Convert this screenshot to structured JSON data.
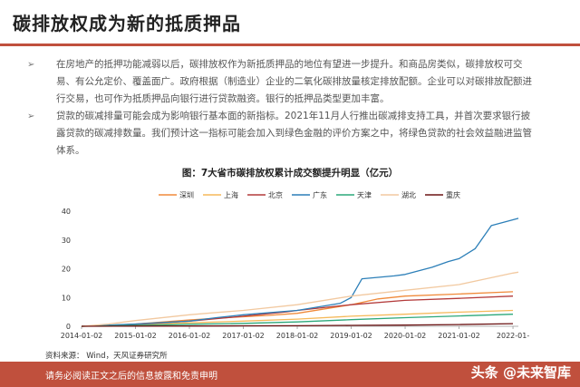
{
  "page": {
    "title": "碳排放权成为新的抵质押品",
    "bullet_symbol": "➢",
    "bullets": [
      "在房地产的抵押功能减弱以后，碳排放权作为新抵质押品的地位有望进一步提升。和商品房类似，碳排放权可交易、有公允定价、覆盖面广。政府根据（制造业）企业的二氧化碳排放量核定排放配额。企业可以对碳排放配额进行交易，也可作为抵质押品向银行进行贷款融资。银行的抵押品类型更加丰富。",
      "贷款的碳减排量可能会成为影响银行基本面的新指标。2021年11月人行推出碳减排支持工具，并首次要求银行披露贷款的碳减排数量。我们预计这一指标可能会加入到绿色金融的评价方案之中，将绿色贷款的社会效益融进监管体系。"
    ],
    "source": "资料来源： Wind，天风证券研究所",
    "footer": "请务必阅读正文之后的信息披露和免责申明",
    "watermark": "头条 @未来智库"
  },
  "chart_data": {
    "type": "line",
    "title": "图：7大省市碳排放权累计成交额提升明显（亿元）",
    "x_ticks": [
      "2014-01-02",
      "2015-01-02",
      "2016-01-02",
      "2017-01-02",
      "2018-01-02",
      "2019-01-02",
      "2020-01-02",
      "2021-01-02",
      "2022-01-"
    ],
    "xlim": [
      2014.0,
      2022.1
    ],
    "ylim": [
      0,
      40
    ],
    "y_ticks": [
      0,
      10,
      20,
      30,
      40
    ],
    "grid": false,
    "legend_position": "top",
    "series": [
      {
        "name": "深圳",
        "color": "#f08a3a",
        "points": [
          [
            2014.0,
            0
          ],
          [
            2014.5,
            0.3
          ],
          [
            2015.0,
            0.8
          ],
          [
            2016.0,
            2.2
          ],
          [
            2016.5,
            2.8
          ],
          [
            2017.0,
            3.3
          ],
          [
            2017.5,
            3.8
          ],
          [
            2018.0,
            4.5
          ],
          [
            2019.0,
            7.5
          ],
          [
            2019.5,
            9.5
          ],
          [
            2020.0,
            10.5
          ],
          [
            2021.0,
            11.2
          ],
          [
            2022.0,
            12.0
          ]
        ]
      },
      {
        "name": "上海",
        "color": "#f5b95a",
        "points": [
          [
            2014.0,
            0
          ],
          [
            2014.5,
            0.2
          ],
          [
            2015.0,
            0.6
          ],
          [
            2016.0,
            1.2
          ],
          [
            2017.0,
            1.8
          ],
          [
            2018.0,
            2.5
          ],
          [
            2019.0,
            3.5
          ],
          [
            2020.0,
            4.2
          ],
          [
            2021.0,
            4.9
          ],
          [
            2022.0,
            5.5
          ]
        ]
      },
      {
        "name": "北京",
        "color": "#b33a3a",
        "points": [
          [
            2014.0,
            0
          ],
          [
            2014.5,
            0.3
          ],
          [
            2015.0,
            0.7
          ],
          [
            2016.0,
            1.8
          ],
          [
            2017.0,
            3.5
          ],
          [
            2017.8,
            5.0
          ],
          [
            2018.0,
            5.5
          ],
          [
            2019.0,
            7.5
          ],
          [
            2020.0,
            9.0
          ],
          [
            2021.0,
            9.7
          ],
          [
            2022.0,
            10.5
          ]
        ]
      },
      {
        "name": "广东",
        "color": "#2c7fb8",
        "points": [
          [
            2014.0,
            0
          ],
          [
            2015.0,
            0.8
          ],
          [
            2016.0,
            1.8
          ],
          [
            2016.5,
            3.0
          ],
          [
            2017.0,
            4.0
          ],
          [
            2018.0,
            5.5
          ],
          [
            2018.8,
            8.0
          ],
          [
            2019.0,
            10.0
          ],
          [
            2019.2,
            16.5
          ],
          [
            2019.8,
            17.5
          ],
          [
            2020.0,
            18.0
          ],
          [
            2020.5,
            20.5
          ],
          [
            2020.8,
            22.5
          ],
          [
            2021.0,
            23.5
          ],
          [
            2021.3,
            27.0
          ],
          [
            2021.6,
            35.0
          ],
          [
            2022.0,
            37.0
          ],
          [
            2022.1,
            37.5
          ]
        ]
      },
      {
        "name": "天津",
        "color": "#2ca87a",
        "points": [
          [
            2014.0,
            0
          ],
          [
            2015.0,
            0.3
          ],
          [
            2016.0,
            0.7
          ],
          [
            2017.0,
            1.0
          ],
          [
            2018.0,
            1.5
          ],
          [
            2019.0,
            2.3
          ],
          [
            2020.0,
            3.0
          ],
          [
            2021.0,
            3.6
          ],
          [
            2022.0,
            4.2
          ]
        ]
      },
      {
        "name": "湖北",
        "color": "#f2c9a0",
        "points": [
          [
            2014.0,
            0
          ],
          [
            2014.5,
            0.8
          ],
          [
            2015.0,
            2.0
          ],
          [
            2016.0,
            4.0
          ],
          [
            2016.5,
            4.8
          ],
          [
            2017.0,
            5.5
          ],
          [
            2018.0,
            7.5
          ],
          [
            2019.0,
            10.5
          ],
          [
            2020.0,
            12.5
          ],
          [
            2021.0,
            14.5
          ],
          [
            2021.5,
            16.5
          ],
          [
            2022.0,
            18.5
          ],
          [
            2022.1,
            18.8
          ]
        ]
      },
      {
        "name": "重庆",
        "color": "#6b1414",
        "points": [
          [
            2014.0,
            0
          ],
          [
            2015.0,
            0.05
          ],
          [
            2016.0,
            0.1
          ],
          [
            2017.0,
            0.15
          ],
          [
            2018.0,
            0.2
          ],
          [
            2019.0,
            0.3
          ],
          [
            2020.0,
            0.4
          ],
          [
            2021.0,
            0.6
          ],
          [
            2022.0,
            0.9
          ]
        ]
      }
    ]
  }
}
